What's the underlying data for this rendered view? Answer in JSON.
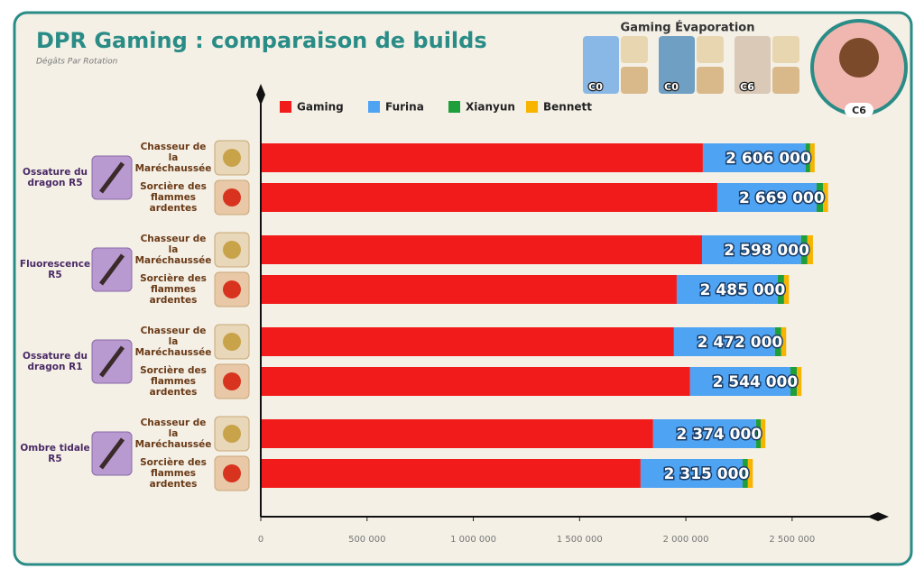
{
  "header": {
    "title": "DPR Gaming : comparaison de builds",
    "subtitle": "Dégâts Par Rotation",
    "team_title": "Gaming Évaporation",
    "constellations": [
      "C0",
      "C0",
      "C6"
    ],
    "main_constellation": "C6"
  },
  "chart_data": {
    "type": "bar",
    "orientation": "horizontal",
    "stacked": true,
    "groups": [
      "Ossature du dragon R5",
      "Fluorescence R5",
      "Ossature du dragon R1",
      "Ombre tidale R5"
    ],
    "categories": [
      "Chasseur de la Maréchaussée",
      "Sorcière des flammes ardentes",
      "Chasseur de la Maréchaussée",
      "Sorcière des flammes ardentes",
      "Chasseur de la Maréchaussée",
      "Sorcière des flammes ardentes",
      "Chasseur de la Maréchaussée",
      "Sorcière des flammes ardentes"
    ],
    "series": [
      {
        "name": "Gaming",
        "color": "#f21b1b",
        "values": [
          2080000,
          2148000,
          2076000,
          1957000,
          1944000,
          2020000,
          1846000,
          1787000
        ]
      },
      {
        "name": "Furina",
        "color": "#4ea3f2",
        "values": [
          483000,
          467000,
          466000,
          475000,
          475000,
          472000,
          484000,
          480000
        ]
      },
      {
        "name": "Xianyun",
        "color": "#1f9e3c",
        "values": [
          22000,
          30000,
          30000,
          30000,
          30000,
          30000,
          22000,
          25000
        ]
      },
      {
        "name": "Bennett",
        "color": "#f7b500",
        "values": [
          21000,
          24000,
          26000,
          23000,
          23000,
          22000,
          22000,
          23000
        ]
      }
    ],
    "totals": [
      2606000,
      2669000,
      2598000,
      2485000,
      2472000,
      2544000,
      2374000,
      2315000
    ],
    "total_labels": [
      "2 606 000",
      "2 669 000",
      "2 598 000",
      "2 485 000",
      "2 472 000",
      "2 544 000",
      "2 374 000",
      "2 315 000"
    ],
    "xlim": [
      0,
      2870000
    ],
    "xticks": [
      0,
      {
        "value": 500000,
        "label": "500 000"
      },
      {
        "value": 1000000,
        "label": "1 000 000"
      },
      {
        "value": 1500000,
        "label": "1 500 000"
      },
      {
        "value": 2000000,
        "label": "2 000 000"
      },
      {
        "value": 2500000,
        "label": "2 500 000"
      }
    ],
    "legend": "top"
  }
}
